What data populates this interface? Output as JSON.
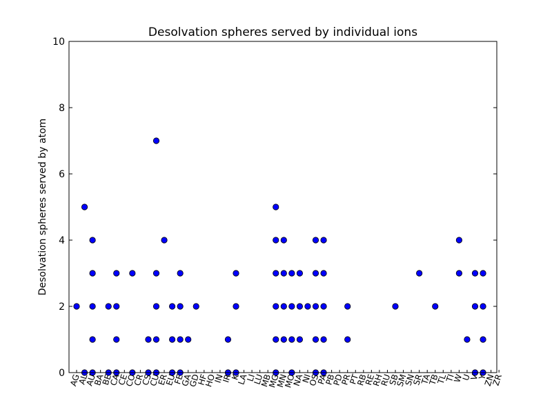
{
  "chart_data": {
    "type": "scatter",
    "title": "Desolvation spheres served by individual ions",
    "xlabel": "",
    "ylabel": "Desolvation spheres served by atom",
    "ylim": [
      0,
      10
    ],
    "yticks": [
      "0",
      "2",
      "4",
      "6",
      "8",
      "10"
    ],
    "grid": false,
    "categories": [
      "AG",
      "AL",
      "AU",
      "BA",
      "BE",
      "CA",
      "CE",
      "CO",
      "CR",
      "CS",
      "CU",
      "ER",
      "EU",
      "FE",
      "GA",
      "GD",
      "HF",
      "HO",
      "IN",
      "IR",
      "K",
      "LA",
      "LI",
      "LU",
      "MB",
      "MG",
      "MN",
      "MO",
      "NA",
      "NI",
      "OS",
      "PA",
      "PB",
      "PD",
      "PR",
      "PT",
      "RB",
      "RE",
      "RH",
      "RU",
      "SB",
      "SM",
      "SN",
      "SR",
      "TA",
      "TB",
      "TL",
      "TI",
      "W",
      "U",
      "V",
      "Y",
      "ZN",
      "ZR"
    ],
    "marker_color": "#0000ff",
    "points": [
      {
        "x": 0,
        "y": 2
      },
      {
        "x": 1,
        "y": 5
      },
      {
        "x": 1,
        "y": 0
      },
      {
        "x": 2,
        "y": 4
      },
      {
        "x": 2,
        "y": 3
      },
      {
        "x": 2,
        "y": 2
      },
      {
        "x": 2,
        "y": 1
      },
      {
        "x": 2,
        "y": 0
      },
      {
        "x": 4,
        "y": 2
      },
      {
        "x": 4,
        "y": 0
      },
      {
        "x": 5,
        "y": 3
      },
      {
        "x": 5,
        "y": 2
      },
      {
        "x": 5,
        "y": 1
      },
      {
        "x": 5,
        "y": 0
      },
      {
        "x": 7,
        "y": 3
      },
      {
        "x": 7,
        "y": 0
      },
      {
        "x": 9,
        "y": 1
      },
      {
        "x": 9,
        "y": 0
      },
      {
        "x": 10,
        "y": 7
      },
      {
        "x": 10,
        "y": 3
      },
      {
        "x": 10,
        "y": 2
      },
      {
        "x": 10,
        "y": 1
      },
      {
        "x": 10,
        "y": 0
      },
      {
        "x": 11,
        "y": 4
      },
      {
        "x": 12,
        "y": 2
      },
      {
        "x": 12,
        "y": 1
      },
      {
        "x": 12,
        "y": 0
      },
      {
        "x": 13,
        "y": 3
      },
      {
        "x": 13,
        "y": 2
      },
      {
        "x": 13,
        "y": 1
      },
      {
        "x": 13,
        "y": 0
      },
      {
        "x": 14,
        "y": 1
      },
      {
        "x": 15,
        "y": 2
      },
      {
        "x": 19,
        "y": 1
      },
      {
        "x": 19,
        "y": 0
      },
      {
        "x": 20,
        "y": 3
      },
      {
        "x": 20,
        "y": 2
      },
      {
        "x": 20,
        "y": 0
      },
      {
        "x": 25,
        "y": 5
      },
      {
        "x": 25,
        "y": 4
      },
      {
        "x": 25,
        "y": 3
      },
      {
        "x": 25,
        "y": 2
      },
      {
        "x": 25,
        "y": 1
      },
      {
        "x": 25,
        "y": 0
      },
      {
        "x": 26,
        "y": 4
      },
      {
        "x": 26,
        "y": 3
      },
      {
        "x": 26,
        "y": 2
      },
      {
        "x": 26,
        "y": 1
      },
      {
        "x": 27,
        "y": 3
      },
      {
        "x": 27,
        "y": 2
      },
      {
        "x": 27,
        "y": 1
      },
      {
        "x": 27,
        "y": 0
      },
      {
        "x": 28,
        "y": 3
      },
      {
        "x": 28,
        "y": 2
      },
      {
        "x": 28,
        "y": 1
      },
      {
        "x": 29,
        "y": 2
      },
      {
        "x": 30,
        "y": 4
      },
      {
        "x": 30,
        "y": 3
      },
      {
        "x": 30,
        "y": 2
      },
      {
        "x": 30,
        "y": 1
      },
      {
        "x": 30,
        "y": 0
      },
      {
        "x": 31,
        "y": 4
      },
      {
        "x": 31,
        "y": 3
      },
      {
        "x": 31,
        "y": 2
      },
      {
        "x": 31,
        "y": 1
      },
      {
        "x": 31,
        "y": 0
      },
      {
        "x": 34,
        "y": 2
      },
      {
        "x": 34,
        "y": 1
      },
      {
        "x": 40,
        "y": 2
      },
      {
        "x": 43,
        "y": 3
      },
      {
        "x": 45,
        "y": 2
      },
      {
        "x": 48,
        "y": 4
      },
      {
        "x": 48,
        "y": 3
      },
      {
        "x": 49,
        "y": 1
      },
      {
        "x": 50,
        "y": 3
      },
      {
        "x": 50,
        "y": 2
      },
      {
        "x": 50,
        "y": 0
      },
      {
        "x": 51,
        "y": 3
      },
      {
        "x": 51,
        "y": 2
      },
      {
        "x": 51,
        "y": 1
      },
      {
        "x": 51,
        "y": 0
      }
    ]
  }
}
